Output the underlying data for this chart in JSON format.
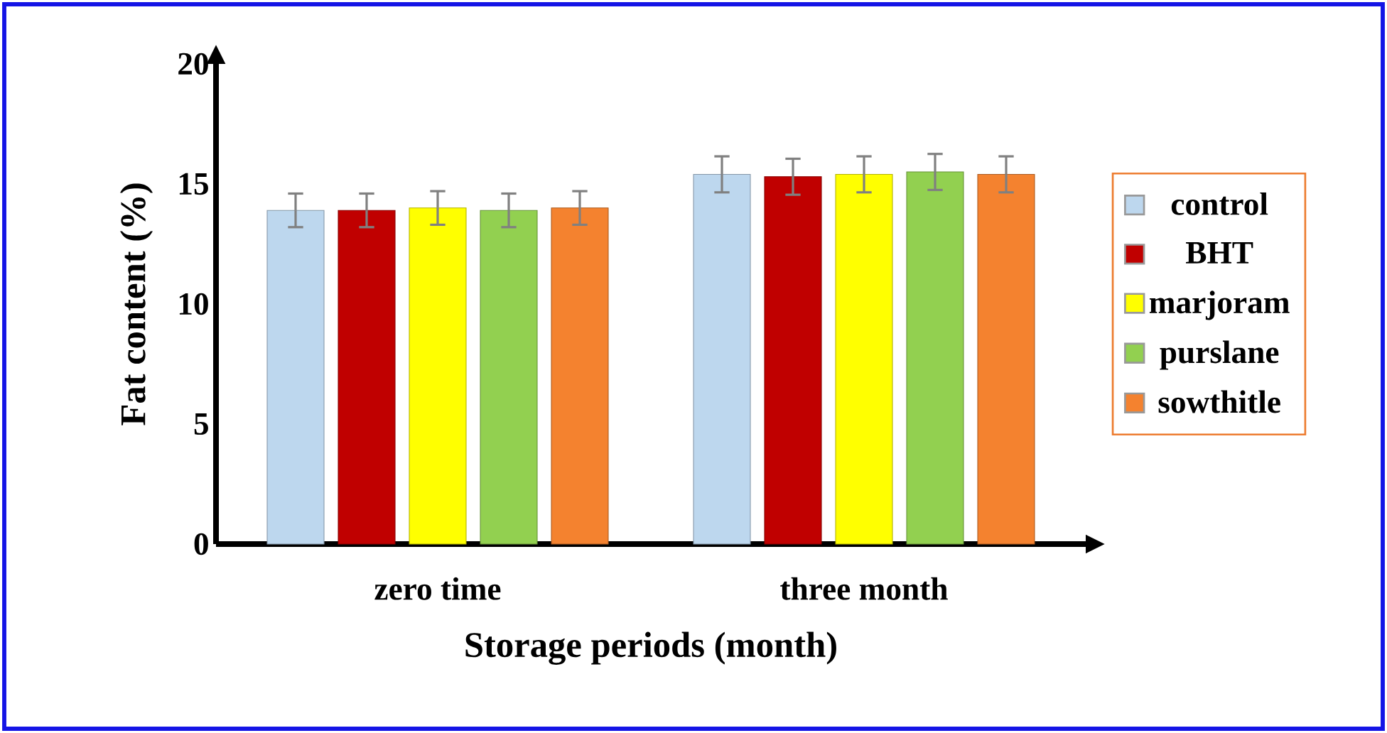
{
  "chart_data": {
    "type": "bar",
    "xlabel": "Storage periods (month)",
    "ylabel": "Fat content (%)",
    "categories": [
      "zero time",
      "three month"
    ],
    "series": [
      {
        "name": "control",
        "color": "#bdd7ee",
        "values": [
          13.9,
          15.4
        ],
        "errors": [
          0.7,
          0.75
        ]
      },
      {
        "name": "BHT",
        "color": "#c00000",
        "values": [
          13.9,
          15.3
        ],
        "errors": [
          0.7,
          0.75
        ]
      },
      {
        "name": "marjoram",
        "color": "#ffff00",
        "values": [
          14.0,
          15.4
        ],
        "errors": [
          0.7,
          0.75
        ]
      },
      {
        "name": "purslane",
        "color": "#92d050",
        "values": [
          13.9,
          15.5
        ],
        "errors": [
          0.7,
          0.75
        ]
      },
      {
        "name": "sowthitle",
        "color": "#f4822f",
        "values": [
          14.0,
          15.4
        ],
        "errors": [
          0.7,
          0.75
        ]
      }
    ],
    "ylim": [
      0,
      20
    ],
    "yticks": [
      0,
      5,
      10,
      15,
      20
    ],
    "legend": "right"
  }
}
